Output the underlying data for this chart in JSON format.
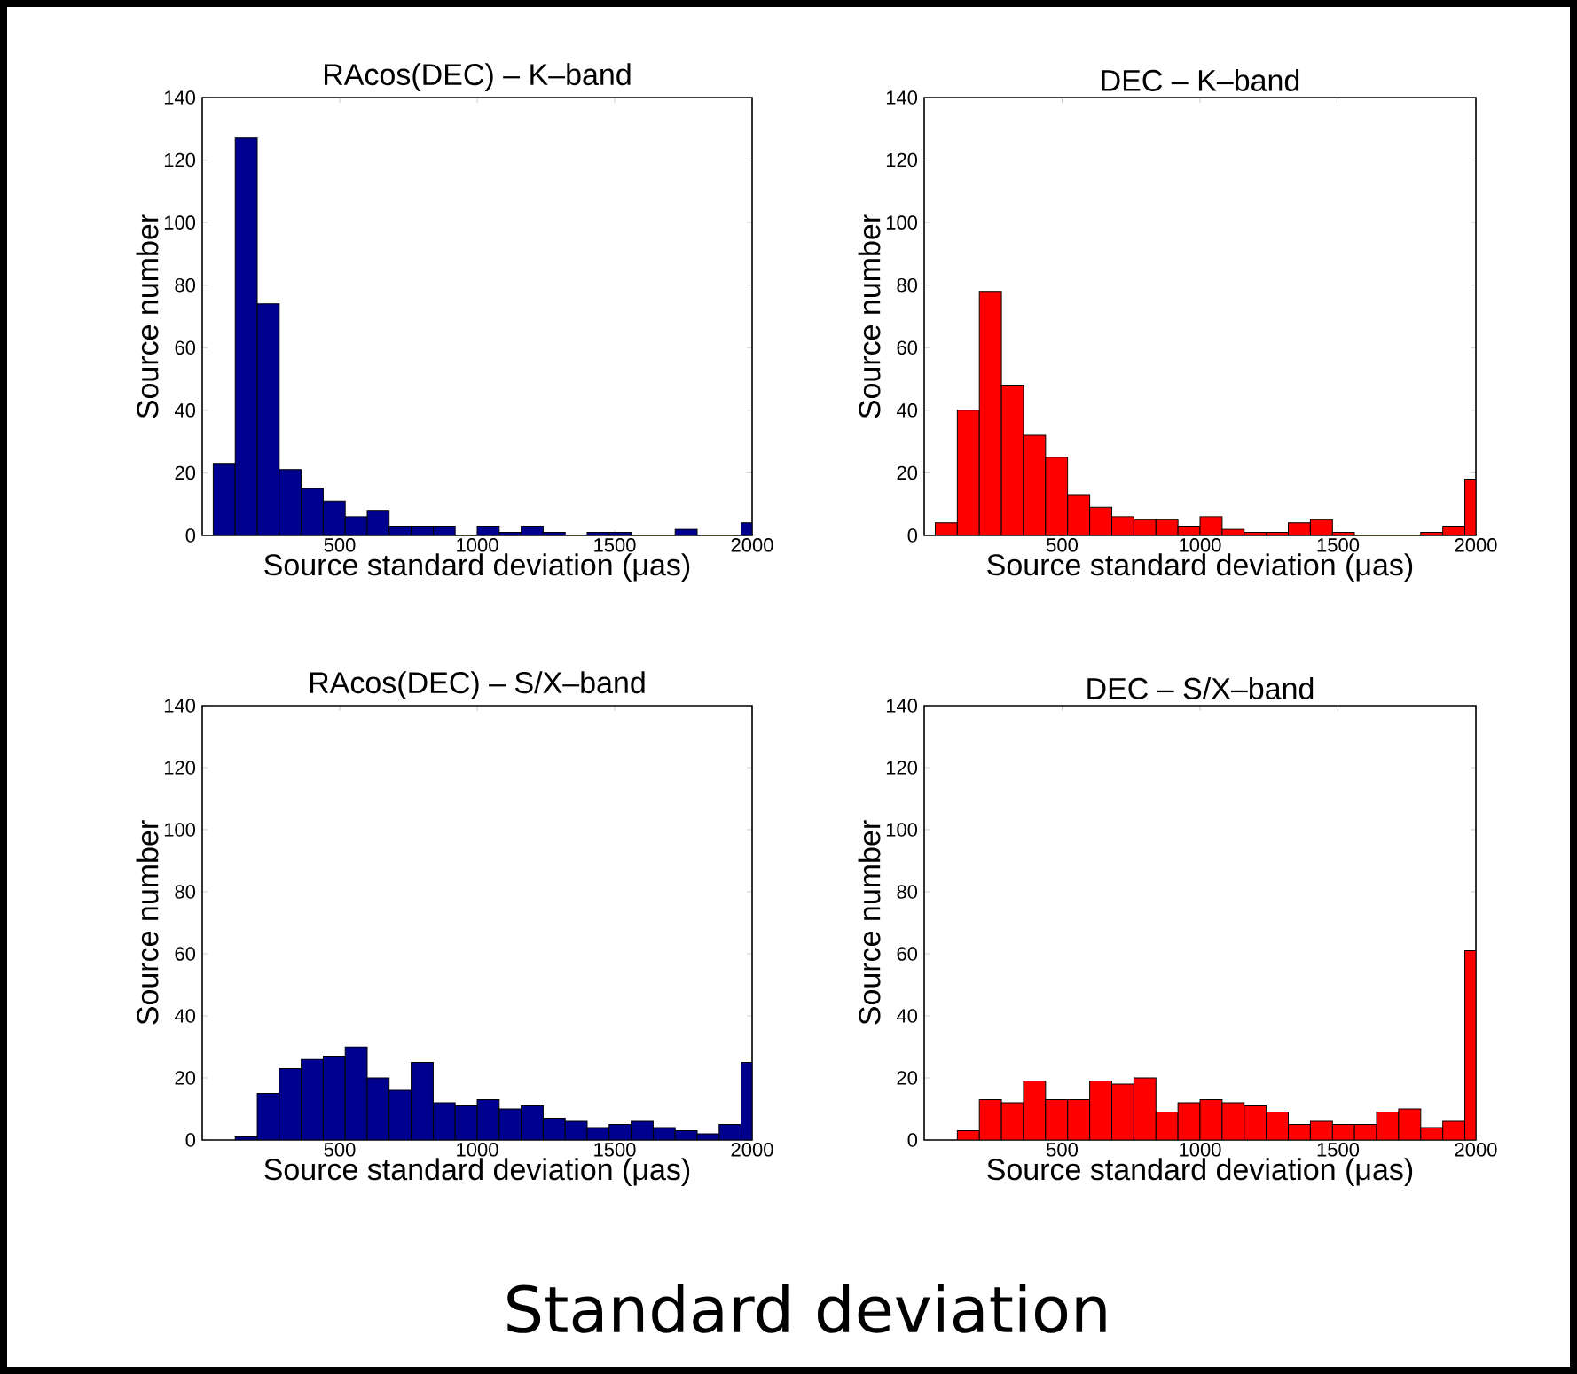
{
  "chart_data": [
    {
      "type": "histogram",
      "title": "RAcos(DEC) – K–band",
      "xlabel": "Source standard deviation (μas)",
      "ylabel": "Source number",
      "color": "#00008f",
      "bins": [
        40,
        120,
        200,
        280,
        360,
        440,
        520,
        600,
        680,
        760,
        840,
        920,
        1000,
        1080,
        1160,
        1240,
        1320,
        1400,
        1480,
        1560,
        1720,
        1800,
        1960,
        2000
      ],
      "values": [
        23,
        127,
        74,
        21,
        15,
        11,
        6,
        8,
        3,
        3,
        3,
        0,
        3,
        1,
        3,
        1,
        0,
        1,
        1,
        0,
        2,
        0,
        4
      ],
      "xlim": [
        0,
        2000
      ],
      "xticks": [
        500,
        1000,
        1500,
        2000
      ],
      "ylim": [
        0,
        140
      ],
      "yticks": [
        0,
        20,
        40,
        60,
        80,
        100,
        120,
        140
      ]
    },
    {
      "type": "histogram",
      "title": "DEC – K–band",
      "xlabel": "Source standard deviation (μas)",
      "ylabel": "Source number",
      "color": "#ff0000",
      "bins": [
        40,
        120,
        200,
        280,
        360,
        440,
        520,
        600,
        680,
        760,
        840,
        920,
        1000,
        1080,
        1160,
        1240,
        1320,
        1400,
        1480,
        1560,
        1800,
        1880,
        1960,
        2000
      ],
      "values": [
        4,
        40,
        78,
        48,
        32,
        25,
        13,
        9,
        6,
        5,
        5,
        3,
        6,
        2,
        1,
        1,
        4,
        5,
        1,
        0,
        1,
        3,
        18
      ],
      "xlim": [
        0,
        2000
      ],
      "xticks": [
        500,
        1000,
        1500,
        2000
      ],
      "ylim": [
        0,
        140
      ],
      "yticks": [
        0,
        20,
        40,
        60,
        80,
        100,
        120,
        140
      ]
    },
    {
      "type": "histogram",
      "title": "RAcos(DEC) – S/X–band",
      "xlabel": "Source standard deviation (μas)",
      "ylabel": "Source number",
      "color": "#00008f",
      "bins": [
        120,
        200,
        280,
        360,
        440,
        520,
        600,
        680,
        760,
        840,
        920,
        1000,
        1080,
        1160,
        1240,
        1320,
        1400,
        1480,
        1560,
        1640,
        1720,
        1800,
        1880,
        1960,
        2000
      ],
      "values": [
        1,
        15,
        23,
        26,
        27,
        30,
        20,
        16,
        25,
        12,
        11,
        13,
        10,
        11,
        7,
        6,
        4,
        5,
        6,
        4,
        3,
        2,
        5,
        25
      ],
      "xlim": [
        0,
        2000
      ],
      "xticks": [
        500,
        1000,
        1500,
        2000
      ],
      "ylim": [
        0,
        140
      ],
      "yticks": [
        0,
        20,
        40,
        60,
        80,
        100,
        120,
        140
      ]
    },
    {
      "type": "histogram",
      "title": "DEC – S/X–band",
      "xlabel": "Source standard deviation (μas)",
      "ylabel": "Source number",
      "color": "#ff0000",
      "bins": [
        120,
        200,
        280,
        360,
        440,
        520,
        600,
        680,
        760,
        840,
        920,
        1000,
        1080,
        1160,
        1240,
        1320,
        1400,
        1480,
        1560,
        1640,
        1720,
        1800,
        1880,
        1960,
        2000
      ],
      "values": [
        3,
        13,
        12,
        19,
        13,
        13,
        19,
        18,
        20,
        9,
        12,
        13,
        12,
        11,
        9,
        5,
        6,
        5,
        5,
        9,
        10,
        4,
        6,
        61
      ],
      "xlim": [
        0,
        2000
      ],
      "xticks": [
        500,
        1000,
        1500,
        2000
      ],
      "ylim": [
        0,
        140
      ],
      "yticks": [
        0,
        20,
        40,
        60,
        80,
        100,
        120,
        140
      ]
    },
    {
      "type": "other",
      "title": "Standard deviation"
    }
  ]
}
